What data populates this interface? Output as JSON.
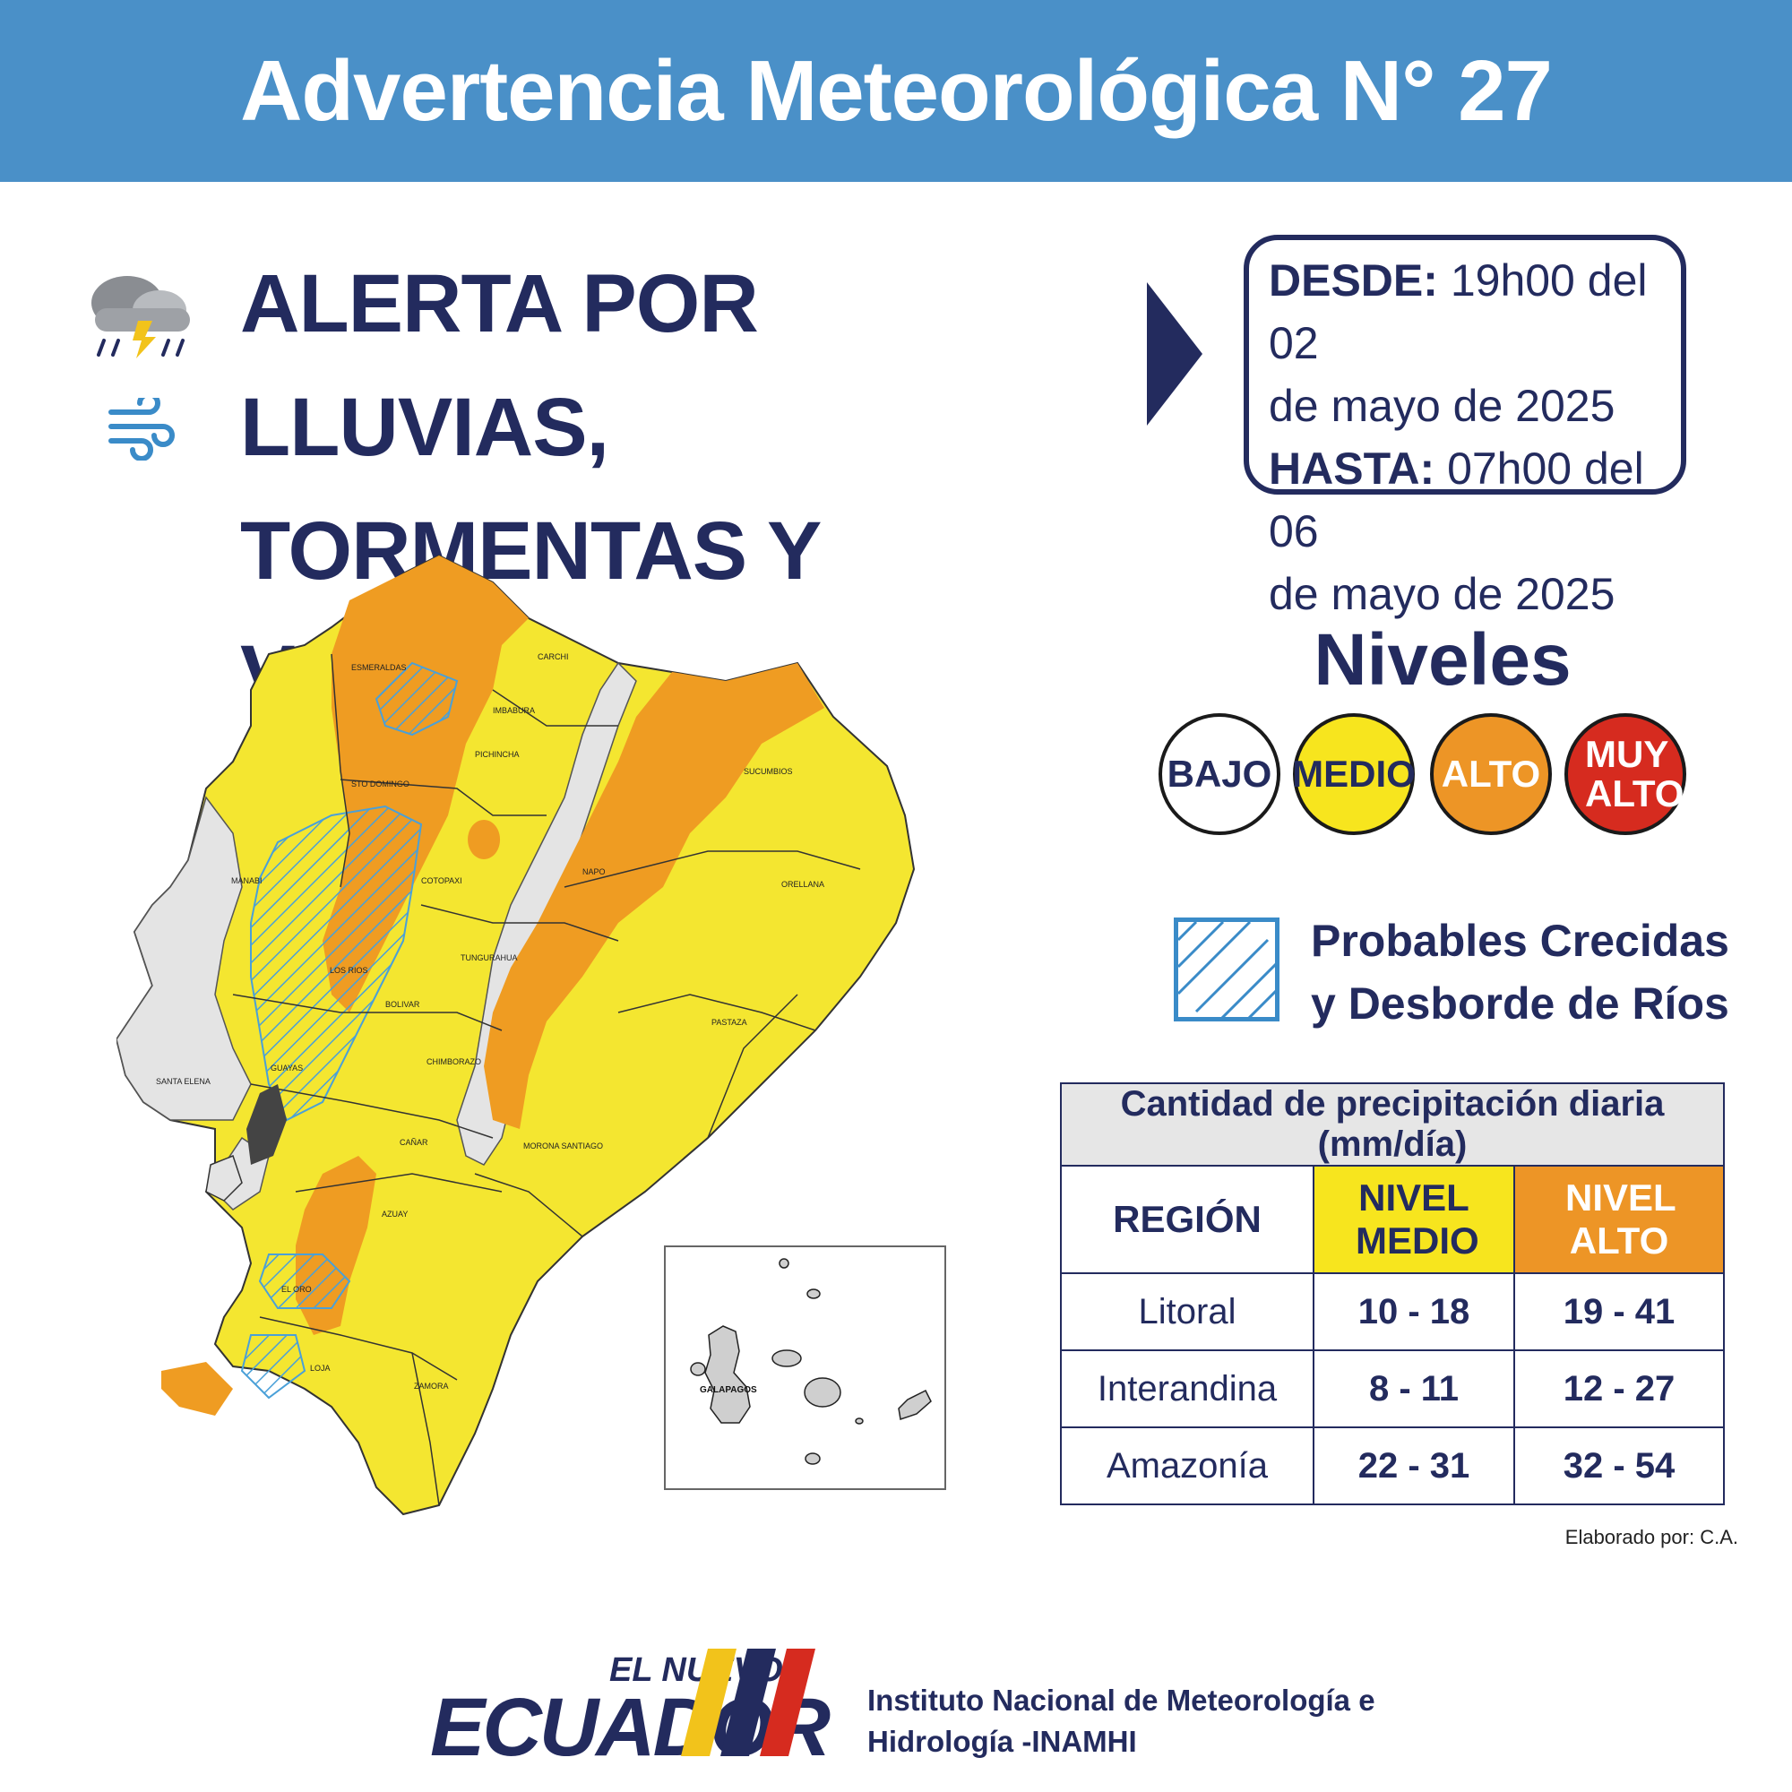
{
  "header": {
    "title": "Advertencia Meteorológica N° 27"
  },
  "alert": {
    "line1_prefix": "ALERTA POR ",
    "line1_emph": "LLUVIAS,",
    "line2": "TORMENTAS Y VIENTO",
    "icons": [
      "storm-cloud-icon",
      "wind-icon"
    ]
  },
  "dates": {
    "from_label": "DESDE:",
    "from_value_1": "19h00 del 02",
    "from_value_2": "de mayo de 2025",
    "to_label": "HASTA:",
    "to_value_1": "07h00 del 06",
    "to_value_2": "de mayo de 2025"
  },
  "levels": {
    "title": "Niveles",
    "items": [
      {
        "label": "BAJO",
        "color": "#ffffff",
        "text_color": "#232b5e"
      },
      {
        "label": "MEDIO",
        "color": "#f7e51e",
        "text_color": "#232b5e"
      },
      {
        "label": "ALTO",
        "color": "#ed9526",
        "text_color": "#ffffff"
      },
      {
        "label": "MUY ALTO",
        "color": "#d62b1f",
        "text_color": "#ffffff"
      }
    ]
  },
  "hatch_legend": {
    "line1": "Probables Crecidas",
    "line2": "y Desborde de Ríos"
  },
  "precip_table": {
    "caption": "Cantidad de precipitación diaria (mm/día)",
    "col_region": "REGIÓN",
    "col_medio": "NIVEL MEDIO",
    "col_alto": "NIVEL ALTO",
    "rows": [
      {
        "region": "Litoral",
        "medio": "10 - 18",
        "alto": "19 - 41"
      },
      {
        "region": "Interandina",
        "medio": "8 - 11",
        "alto": "12 - 27"
      },
      {
        "region": "Amazonía",
        "medio": "22 - 31",
        "alto": "32 - 54"
      }
    ]
  },
  "credit": "Elaborado por: C.A.",
  "map": {
    "provinces": [
      "ESMERALDAS",
      "CARCHI",
      "IMBABURA",
      "SUCUMBIOS",
      "PICHINCHA",
      "STO DOMINGO",
      "NAPO",
      "MANABI",
      "COTOPAXI",
      "ORELLANA",
      "LOS RIOS",
      "TUNGURAHUA",
      "BOLIVAR",
      "PASTAZA",
      "SANTA ELENA",
      "CHIMBORAZO",
      "GUAYAS",
      "CAÑAR",
      "MORONA SANTIAGO",
      "AZUAY",
      "EL ORO",
      "LOJA",
      "ZAMORA"
    ],
    "inset_label": "GALAPAGOS",
    "colors": {
      "medio": "#f4e630",
      "alto": "#ef9c22",
      "bajo": "#e4e4e4",
      "hatch": "#4aa0d8"
    }
  },
  "footer": {
    "logo_small": "EL NUEVO",
    "logo_big": "ECUADOR",
    "institute_line1": "Instituto Nacional de Meteorología e",
    "institute_line2": "Hidrología -INAMHI"
  }
}
